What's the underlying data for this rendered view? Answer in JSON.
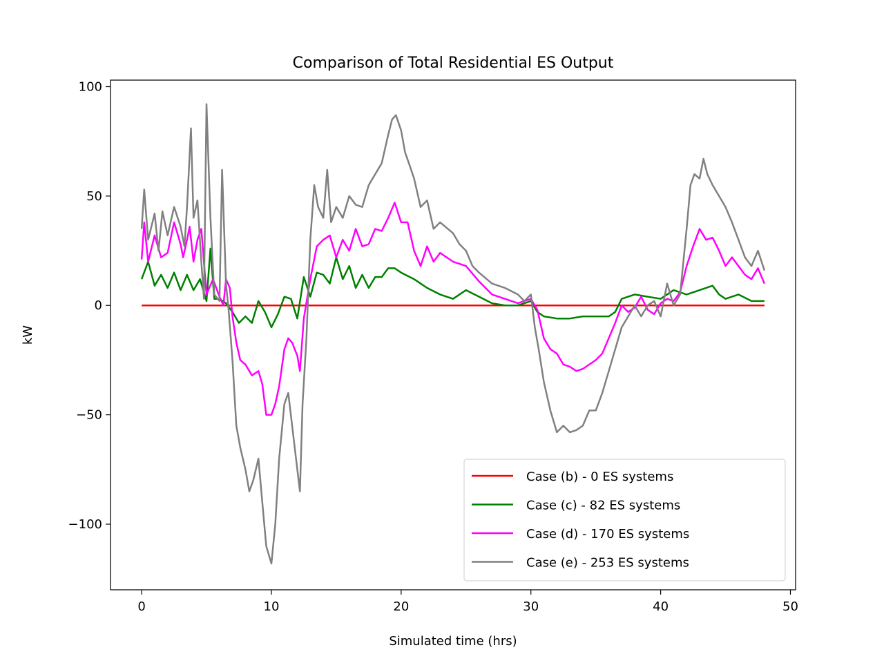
{
  "chart_data": {
    "type": "line",
    "title": "Comparison of Total Residential ES Output",
    "xlabel": "Simulated time (hrs)",
    "ylabel": "kW",
    "xlim": [
      -2.4,
      50.4
    ],
    "ylim": [
      -130,
      103
    ],
    "xticks": [
      0,
      10,
      20,
      30,
      40,
      50
    ],
    "yticks": [
      -100,
      -50,
      0,
      50,
      100
    ],
    "xtick_labels": [
      "0",
      "10",
      "20",
      "30",
      "40",
      "50"
    ],
    "ytick_labels": [
      "−100",
      "−50",
      "0",
      "50",
      "100"
    ],
    "grid": false,
    "legend_position": "lower-right",
    "series": [
      {
        "name": "Case (b) - 0 ES systems",
        "color": "#ff0000",
        "points": [
          [
            0,
            0
          ],
          [
            48,
            0
          ]
        ]
      },
      {
        "name": "Case (c) - 82 ES systems",
        "color": "#008000",
        "points": [
          [
            0,
            12
          ],
          [
            0.5,
            20
          ],
          [
            1,
            9
          ],
          [
            1.5,
            14
          ],
          [
            2,
            8
          ],
          [
            2.5,
            15
          ],
          [
            3,
            7
          ],
          [
            3.5,
            14
          ],
          [
            4,
            7
          ],
          [
            4.5,
            12
          ],
          [
            5,
            2
          ],
          [
            5.3,
            26
          ],
          [
            5.6,
            3
          ],
          [
            6,
            3
          ],
          [
            6.5,
            1
          ],
          [
            7,
            -3
          ],
          [
            7.5,
            -8
          ],
          [
            8,
            -5
          ],
          [
            8.5,
            -8
          ],
          [
            9,
            2
          ],
          [
            9.5,
            -3
          ],
          [
            10,
            -10
          ],
          [
            10.5,
            -4
          ],
          [
            11,
            4
          ],
          [
            11.5,
            3
          ],
          [
            12,
            -6
          ],
          [
            12.5,
            13
          ],
          [
            13,
            4
          ],
          [
            13.5,
            15
          ],
          [
            14,
            14
          ],
          [
            14.5,
            10
          ],
          [
            15,
            22
          ],
          [
            15.5,
            12
          ],
          [
            16,
            18
          ],
          [
            16.5,
            8
          ],
          [
            17,
            14
          ],
          [
            17.5,
            8
          ],
          [
            18,
            13
          ],
          [
            18.5,
            13
          ],
          [
            19,
            17
          ],
          [
            19.5,
            17
          ],
          [
            20,
            15
          ],
          [
            21,
            12
          ],
          [
            22,
            8
          ],
          [
            23,
            5
          ],
          [
            24,
            3
          ],
          [
            25,
            7
          ],
          [
            26,
            4
          ],
          [
            27,
            1
          ],
          [
            28,
            0
          ],
          [
            29,
            0
          ],
          [
            30,
            2
          ],
          [
            30.5,
            -3
          ],
          [
            31,
            -5
          ],
          [
            32,
            -6
          ],
          [
            33,
            -6
          ],
          [
            34,
            -5
          ],
          [
            35,
            -5
          ],
          [
            36,
            -5
          ],
          [
            36.5,
            -3
          ],
          [
            37,
            3
          ],
          [
            38,
            5
          ],
          [
            39,
            4
          ],
          [
            40,
            3
          ],
          [
            41,
            7
          ],
          [
            42,
            5
          ],
          [
            43,
            7
          ],
          [
            44,
            9
          ],
          [
            44.5,
            5
          ],
          [
            45,
            3
          ],
          [
            46,
            5
          ],
          [
            47,
            2
          ],
          [
            48,
            2
          ]
        ]
      },
      {
        "name": "Case (d) - 170 ES systems",
        "color": "#ff00ff",
        "points": [
          [
            0,
            21
          ],
          [
            0.2,
            38
          ],
          [
            0.5,
            20
          ],
          [
            1,
            32
          ],
          [
            1.5,
            22
          ],
          [
            2,
            24
          ],
          [
            2.5,
            38
          ],
          [
            3,
            28
          ],
          [
            3.2,
            22
          ],
          [
            3.5,
            30
          ],
          [
            3.7,
            36
          ],
          [
            4,
            20
          ],
          [
            4.3,
            30
          ],
          [
            4.6,
            35
          ],
          [
            5,
            5
          ],
          [
            5.5,
            12
          ],
          [
            6,
            4
          ],
          [
            6.3,
            0
          ],
          [
            6.5,
            12
          ],
          [
            6.8,
            8
          ],
          [
            7,
            -5
          ],
          [
            7.3,
            -17
          ],
          [
            7.6,
            -25
          ],
          [
            8,
            -27
          ],
          [
            8.5,
            -32
          ],
          [
            9,
            -30
          ],
          [
            9.3,
            -36
          ],
          [
            9.6,
            -50
          ],
          [
            10,
            -50
          ],
          [
            10.3,
            -45
          ],
          [
            10.6,
            -37
          ],
          [
            11,
            -20
          ],
          [
            11.3,
            -15
          ],
          [
            11.6,
            -17
          ],
          [
            12,
            -23
          ],
          [
            12.2,
            -30
          ],
          [
            12.5,
            -6
          ],
          [
            13,
            12
          ],
          [
            13.5,
            27
          ],
          [
            14,
            30
          ],
          [
            14.5,
            32
          ],
          [
            15,
            22
          ],
          [
            15.5,
            30
          ],
          [
            16,
            25
          ],
          [
            16.5,
            35
          ],
          [
            17,
            27
          ],
          [
            17.5,
            28
          ],
          [
            18,
            35
          ],
          [
            18.5,
            34
          ],
          [
            19,
            40
          ],
          [
            19.5,
            47
          ],
          [
            20,
            38
          ],
          [
            20.5,
            38
          ],
          [
            21,
            25
          ],
          [
            21.5,
            18
          ],
          [
            22,
            27
          ],
          [
            22.5,
            20
          ],
          [
            23,
            24
          ],
          [
            24,
            20
          ],
          [
            25,
            18
          ],
          [
            26,
            11
          ],
          [
            27,
            5
          ],
          [
            28,
            3
          ],
          [
            29,
            1
          ],
          [
            30,
            3
          ],
          [
            30.5,
            -2
          ],
          [
            31,
            -15
          ],
          [
            31.5,
            -20
          ],
          [
            32,
            -22
          ],
          [
            32.5,
            -27
          ],
          [
            33,
            -28
          ],
          [
            33.5,
            -30
          ],
          [
            34,
            -29
          ],
          [
            35,
            -25
          ],
          [
            35.5,
            -22
          ],
          [
            36,
            -15
          ],
          [
            36.5,
            -8
          ],
          [
            37,
            0
          ],
          [
            37.5,
            -3
          ],
          [
            38,
            -1
          ],
          [
            38.5,
            4
          ],
          [
            39,
            -2
          ],
          [
            39.5,
            -4
          ],
          [
            40,
            1
          ],
          [
            40.5,
            3
          ],
          [
            41,
            2
          ],
          [
            41.5,
            6
          ],
          [
            42,
            18
          ],
          [
            42.5,
            27
          ],
          [
            43,
            35
          ],
          [
            43.5,
            30
          ],
          [
            44,
            31
          ],
          [
            44.5,
            25
          ],
          [
            45,
            18
          ],
          [
            45.5,
            22
          ],
          [
            46,
            18
          ],
          [
            46.5,
            14
          ],
          [
            47,
            12
          ],
          [
            47.5,
            17
          ],
          [
            48,
            10
          ]
        ]
      },
      {
        "name": "Case (e) - 253 ES systems",
        "color": "#808080",
        "points": [
          [
            0,
            35
          ],
          [
            0.2,
            53
          ],
          [
            0.5,
            30
          ],
          [
            1,
            42
          ],
          [
            1.3,
            25
          ],
          [
            1.6,
            43
          ],
          [
            2,
            32
          ],
          [
            2.5,
            45
          ],
          [
            3,
            36
          ],
          [
            3.3,
            27
          ],
          [
            3.5,
            45
          ],
          [
            3.8,
            81
          ],
          [
            4,
            40
          ],
          [
            4.3,
            48
          ],
          [
            4.6,
            20
          ],
          [
            4.8,
            3
          ],
          [
            5,
            92
          ],
          [
            5.3,
            40
          ],
          [
            5.6,
            5
          ],
          [
            6,
            2
          ],
          [
            6.2,
            62
          ],
          [
            6.5,
            10
          ],
          [
            6.7,
            -2
          ],
          [
            7,
            -25
          ],
          [
            7.3,
            -55
          ],
          [
            7.6,
            -65
          ],
          [
            8,
            -75
          ],
          [
            8.3,
            -85
          ],
          [
            8.6,
            -80
          ],
          [
            9,
            -70
          ],
          [
            9.3,
            -90
          ],
          [
            9.6,
            -110
          ],
          [
            10,
            -118
          ],
          [
            10.3,
            -100
          ],
          [
            10.6,
            -70
          ],
          [
            11,
            -45
          ],
          [
            11.3,
            -40
          ],
          [
            11.6,
            -55
          ],
          [
            12,
            -75
          ],
          [
            12.2,
            -85
          ],
          [
            12.4,
            -45
          ],
          [
            12.7,
            -15
          ],
          [
            13,
            30
          ],
          [
            13.3,
            55
          ],
          [
            13.6,
            45
          ],
          [
            14,
            40
          ],
          [
            14.3,
            62
          ],
          [
            14.6,
            38
          ],
          [
            15,
            45
          ],
          [
            15.5,
            40
          ],
          [
            16,
            50
          ],
          [
            16.5,
            46
          ],
          [
            17,
            45
          ],
          [
            17.5,
            55
          ],
          [
            18,
            60
          ],
          [
            18.5,
            65
          ],
          [
            19,
            78
          ],
          [
            19.3,
            85
          ],
          [
            19.6,
            87
          ],
          [
            20,
            80
          ],
          [
            20.3,
            70
          ],
          [
            20.6,
            65
          ],
          [
            21,
            58
          ],
          [
            21.5,
            45
          ],
          [
            22,
            48
          ],
          [
            22.5,
            35
          ],
          [
            23,
            38
          ],
          [
            24,
            33
          ],
          [
            24.5,
            28
          ],
          [
            25,
            25
          ],
          [
            25.5,
            18
          ],
          [
            26,
            15
          ],
          [
            27,
            10
          ],
          [
            28,
            8
          ],
          [
            29,
            5
          ],
          [
            29.5,
            2
          ],
          [
            30,
            5
          ],
          [
            30.3,
            -10
          ],
          [
            30.6,
            -20
          ],
          [
            31,
            -35
          ],
          [
            31.5,
            -48
          ],
          [
            32,
            -58
          ],
          [
            32.5,
            -55
          ],
          [
            33,
            -58
          ],
          [
            33.5,
            -57
          ],
          [
            34,
            -55
          ],
          [
            34.5,
            -48
          ],
          [
            35,
            -48
          ],
          [
            35.5,
            -40
          ],
          [
            36,
            -30
          ],
          [
            36.5,
            -20
          ],
          [
            37,
            -10
          ],
          [
            37.5,
            -5
          ],
          [
            38,
            0
          ],
          [
            38.5,
            -5
          ],
          [
            39,
            0
          ],
          [
            39.5,
            2
          ],
          [
            40,
            -5
          ],
          [
            40.5,
            10
          ],
          [
            41,
            0
          ],
          [
            41.5,
            5
          ],
          [
            42,
            35
          ],
          [
            42.3,
            55
          ],
          [
            42.6,
            60
          ],
          [
            43,
            58
          ],
          [
            43.3,
            67
          ],
          [
            43.6,
            60
          ],
          [
            44,
            55
          ],
          [
            44.5,
            50
          ],
          [
            45,
            45
          ],
          [
            45.5,
            38
          ],
          [
            46,
            30
          ],
          [
            46.5,
            22
          ],
          [
            47,
            18
          ],
          [
            47.5,
            25
          ],
          [
            48,
            16
          ]
        ]
      }
    ]
  }
}
